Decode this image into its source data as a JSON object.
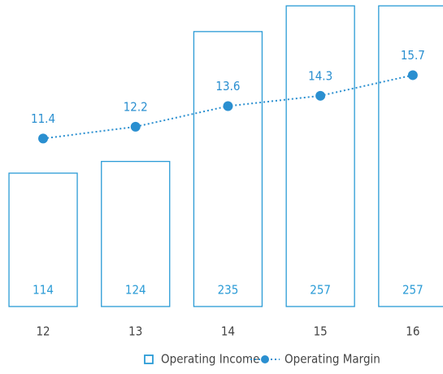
{
  "chart_data": {
    "type": "bar",
    "categories": [
      "12",
      "13",
      "14",
      "15",
      "16"
    ],
    "series": [
      {
        "name": "Operating Income",
        "type": "bar",
        "color": "#2a9bd6",
        "values": [
          114,
          124,
          235,
          257,
          257
        ]
      },
      {
        "name": "Operating Margin",
        "type": "line",
        "axis": "y2",
        "color": "#2a8fd0",
        "values": [
          11.4,
          12.2,
          13.6,
          14.3,
          15.7
        ]
      }
    ],
    "ylim": [
      0,
      262
    ],
    "y2lim": [
      0,
      20.8
    ],
    "legend": "bottom"
  }
}
